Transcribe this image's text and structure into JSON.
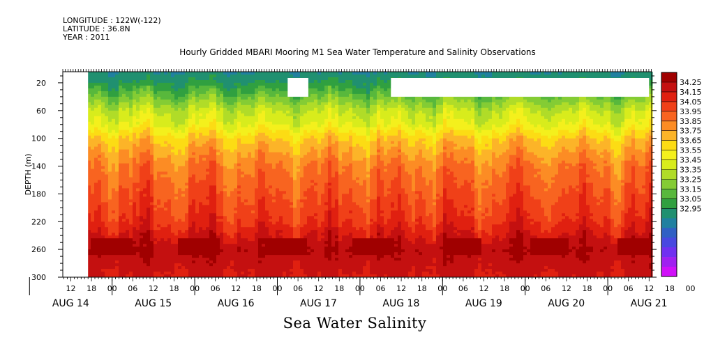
{
  "header": {
    "longitude": "LONGITUDE : 122W(-122)",
    "latitude": "LATITUDE : 36.8N",
    "year": "YEAR : 2011",
    "title": "Hourly Gridded MBARI Mooring M1 Sea Water Temperature and Salinity Observations"
  },
  "footer": {
    "variable_title": "Sea Water Salinity"
  },
  "chart_data": {
    "type": "heatmap",
    "title": "Hourly Gridded MBARI Mooring M1 Sea Water Temperature and Salinity Observations",
    "xlabel": "",
    "ylabel": "DEPTH (m)",
    "y_axis": {
      "range": [
        300,
        4
      ],
      "ticks": [
        20,
        60,
        100,
        140,
        180,
        220,
        260,
        300
      ],
      "inverted": true
    },
    "x_axis": {
      "hour_ticks": [
        "12",
        "18",
        "00",
        "06",
        "12",
        "18",
        "00",
        "06",
        "12",
        "18",
        "00",
        "06",
        "12",
        "18",
        "00",
        "06",
        "12",
        "18",
        "00",
        "06",
        "12",
        "18",
        "00",
        "06",
        "12",
        "18",
        "00",
        "06",
        "12",
        "18",
        "00",
        "06"
      ],
      "day_labels": [
        "AUG 14",
        "AUG 15",
        "AUG 16",
        "AUG 17",
        "AUG 18",
        "AUG 19",
        "AUG 20",
        "AUG 21"
      ]
    },
    "colorbar": {
      "labels": [
        "34.25",
        "34.15",
        "34.05",
        "33.95",
        "33.85",
        "33.75",
        "33.65",
        "33.55",
        "33.45",
        "33.35",
        "33.25",
        "33.15",
        "33.05",
        "32.95"
      ],
      "colors": [
        "#a00000",
        "#c41010",
        "#e02010",
        "#f04018",
        "#f86420",
        "#fc8c24",
        "#fcb428",
        "#fcdc14",
        "#f4f01c",
        "#d8ec1c",
        "#b0dc28",
        "#84cc34",
        "#58b83c",
        "#30a040",
        "#209070",
        "#2080a0",
        "#3060c4",
        "#4848e0",
        "#7030f0",
        "#a020f0",
        "#d010f8"
      ]
    },
    "depth_profile": [
      {
        "depth": 4,
        "salinity": 33.55
      },
      {
        "depth": 20,
        "salinity": 33.6
      },
      {
        "depth": 40,
        "salinity": 33.7
      },
      {
        "depth": 60,
        "salinity": 33.8
      },
      {
        "depth": 80,
        "salinity": 33.85
      },
      {
        "depth": 100,
        "salinity": 33.95
      },
      {
        "depth": 120,
        "salinity": 34.0
      },
      {
        "depth": 140,
        "salinity": 34.05
      },
      {
        "depth": 180,
        "salinity": 34.1
      },
      {
        "depth": 220,
        "salinity": 34.15
      },
      {
        "depth": 240,
        "salinity": 34.2
      },
      {
        "depth": 260,
        "salinity": 34.25
      },
      {
        "depth": 300,
        "salinity": 34.2
      }
    ],
    "missing_data_hours": [
      {
        "from": "AUG 14 09",
        "to": "AUG 14 17",
        "depth_from": 4,
        "depth_to": 300
      },
      {
        "from": "AUG 17 03",
        "to": "AUG 17 09",
        "depth_from": 13,
        "depth_to": 40
      },
      {
        "from": "AUG 18 09",
        "to": "AUG 21 12",
        "depth_from": 13,
        "depth_to": 40
      }
    ]
  }
}
